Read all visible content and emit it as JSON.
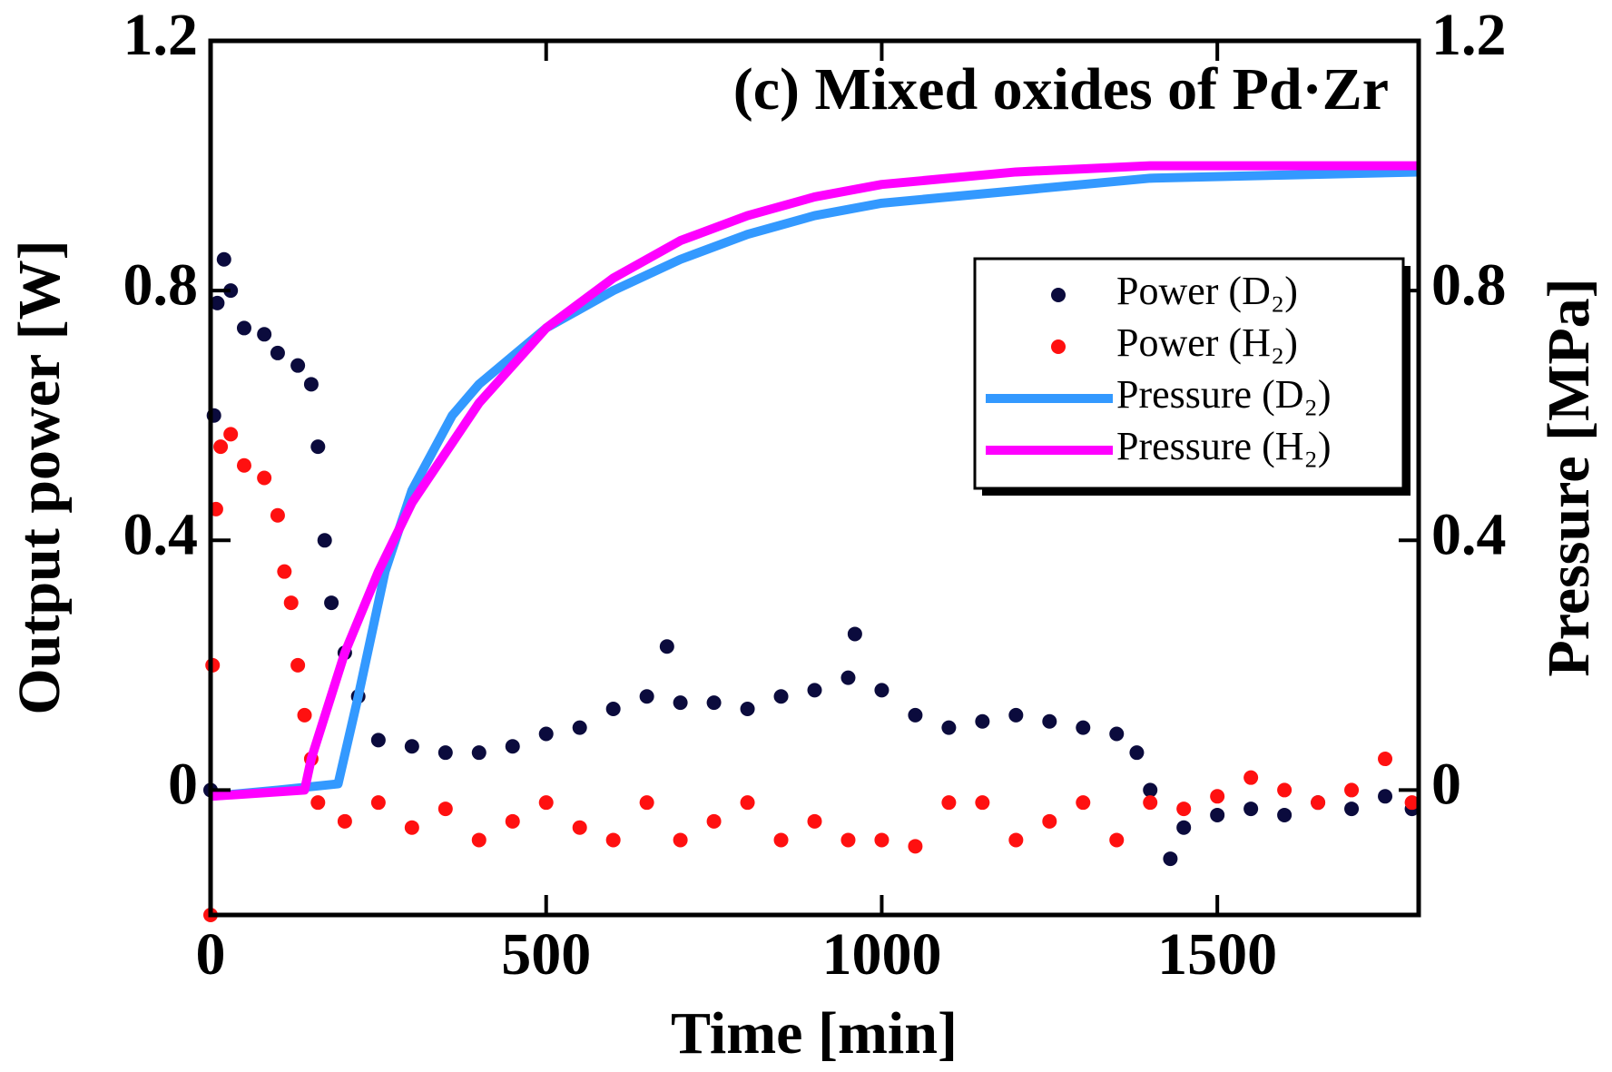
{
  "chart_data": {
    "type": "scatter",
    "title": "(c) Mixed oxides of Pd·Zr",
    "xlabel": "Time [min]",
    "ylabel": "Output power [W]",
    "y2label": "Pressure [MPa]",
    "xlim": [
      0,
      1800
    ],
    "xticks": [
      0,
      500,
      1000,
      1500
    ],
    "ylim": [
      -0.2,
      1.2
    ],
    "yticks": [
      0,
      0.4,
      0.8,
      1.2
    ],
    "y2lim": [
      -0.2,
      1.2
    ],
    "y2ticks": [
      0,
      0.4,
      0.8,
      1.2
    ],
    "legend": "upper-right",
    "series": [
      {
        "name": "Power (D₂)",
        "type": "scatter",
        "color": "#0b0b3d",
        "x": [
          0,
          5,
          10,
          20,
          30,
          50,
          80,
          100,
          130,
          150,
          160,
          170,
          180,
          200,
          220,
          250,
          300,
          350,
          400,
          450,
          500,
          550,
          600,
          650,
          680,
          700,
          750,
          800,
          850,
          900,
          950,
          960,
          1000,
          1050,
          1100,
          1150,
          1200,
          1250,
          1300,
          1350,
          1380,
          1400,
          1430,
          1450,
          1500,
          1550,
          1600,
          1650,
          1700,
          1750,
          1790
        ],
        "values": [
          0,
          0.6,
          0.78,
          0.85,
          0.8,
          0.74,
          0.73,
          0.7,
          0.68,
          0.65,
          0.55,
          0.4,
          0.3,
          0.22,
          0.15,
          0.08,
          0.07,
          0.06,
          0.06,
          0.07,
          0.09,
          0.1,
          0.13,
          0.15,
          0.23,
          0.14,
          0.14,
          0.13,
          0.15,
          0.16,
          0.18,
          0.25,
          0.16,
          0.12,
          0.1,
          0.11,
          0.12,
          0.11,
          0.1,
          0.09,
          0.06,
          0,
          -0.11,
          -0.06,
          -0.04,
          -0.03,
          -0.04,
          -0.02,
          -0.03,
          -0.01,
          -0.03
        ]
      },
      {
        "name": "Power (H₂)",
        "type": "scatter",
        "color": "#ff1010",
        "x": [
          0,
          3,
          8,
          15,
          30,
          50,
          80,
          100,
          110,
          120,
          130,
          140,
          150,
          160,
          200,
          250,
          300,
          350,
          400,
          450,
          500,
          550,
          600,
          650,
          700,
          750,
          800,
          850,
          900,
          950,
          1000,
          1050,
          1100,
          1150,
          1200,
          1250,
          1300,
          1350,
          1400,
          1450,
          1500,
          1550,
          1600,
          1650,
          1700,
          1750,
          1790
        ],
        "values": [
          -0.2,
          0.2,
          0.45,
          0.55,
          0.57,
          0.52,
          0.5,
          0.44,
          0.35,
          0.3,
          0.2,
          0.12,
          0.05,
          -0.02,
          -0.05,
          -0.02,
          -0.06,
          -0.03,
          -0.08,
          -0.05,
          -0.02,
          -0.06,
          -0.08,
          -0.02,
          -0.08,
          -0.05,
          -0.02,
          -0.08,
          -0.05,
          -0.08,
          -0.08,
          -0.09,
          -0.02,
          -0.02,
          -0.08,
          -0.05,
          -0.02,
          -0.08,
          -0.02,
          -0.03,
          -0.01,
          0.02,
          0,
          -0.02,
          0,
          0.05,
          -0.02
        ]
      },
      {
        "name": "Pressure (D₂)",
        "type": "line",
        "axis": "y2",
        "color": "#3399ff",
        "x": [
          0,
          100,
          190,
          220,
          260,
          300,
          360,
          400,
          500,
          600,
          700,
          800,
          900,
          1000,
          1200,
          1400,
          1600,
          1800
        ],
        "values": [
          -0.01,
          0,
          0.01,
          0.15,
          0.35,
          0.48,
          0.6,
          0.65,
          0.74,
          0.8,
          0.85,
          0.89,
          0.92,
          0.94,
          0.96,
          0.98,
          0.985,
          0.99
        ]
      },
      {
        "name": "Pressure (H₂)",
        "type": "line",
        "axis": "y2",
        "color": "#ff00ff",
        "x": [
          0,
          140,
          150,
          200,
          250,
          300,
          400,
          500,
          600,
          700,
          800,
          900,
          1000,
          1200,
          1400,
          1800
        ],
        "values": [
          -0.01,
          0,
          0.05,
          0.22,
          0.35,
          0.46,
          0.62,
          0.74,
          0.82,
          0.88,
          0.92,
          0.95,
          0.97,
          0.99,
          1,
          1
        ]
      }
    ]
  }
}
